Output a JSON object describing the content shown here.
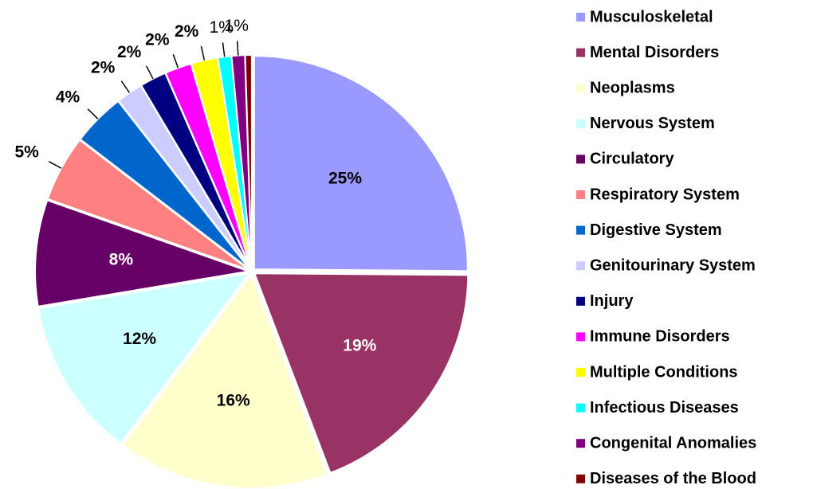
{
  "chart_data": {
    "type": "pie",
    "categories": [
      "Musculoskeletal",
      "Mental Disorders",
      "Neoplasms",
      "Nervous System",
      "Circulatory",
      "Respiratory System",
      "Digestive System",
      "Genitourinary System",
      "Injury",
      "Immune Disorders",
      "Multiple Conditions",
      "Infectious Diseases",
      "Congenital Anomalies",
      "Diseases of the Blood"
    ],
    "values": [
      25,
      19,
      16,
      12,
      8,
      5,
      4,
      2,
      2,
      2,
      2,
      1,
      1,
      0.5
    ],
    "value_labels": [
      "25%",
      "19%",
      "16%",
      "12%",
      "8%",
      "5%",
      "4%",
      "2%",
      "2%",
      "2%",
      "2%",
      "1%",
      "1%",
      null
    ],
    "colors": [
      "#9999ff",
      "#993366",
      "#ffffcc",
      "#ccffff",
      "#660066",
      "#ff8080",
      "#0066cc",
      "#ccccff",
      "#000080",
      "#ff00ff",
      "#ffff00",
      "#00ffff",
      "#800080",
      "#800000"
    ],
    "legend": "right"
  }
}
